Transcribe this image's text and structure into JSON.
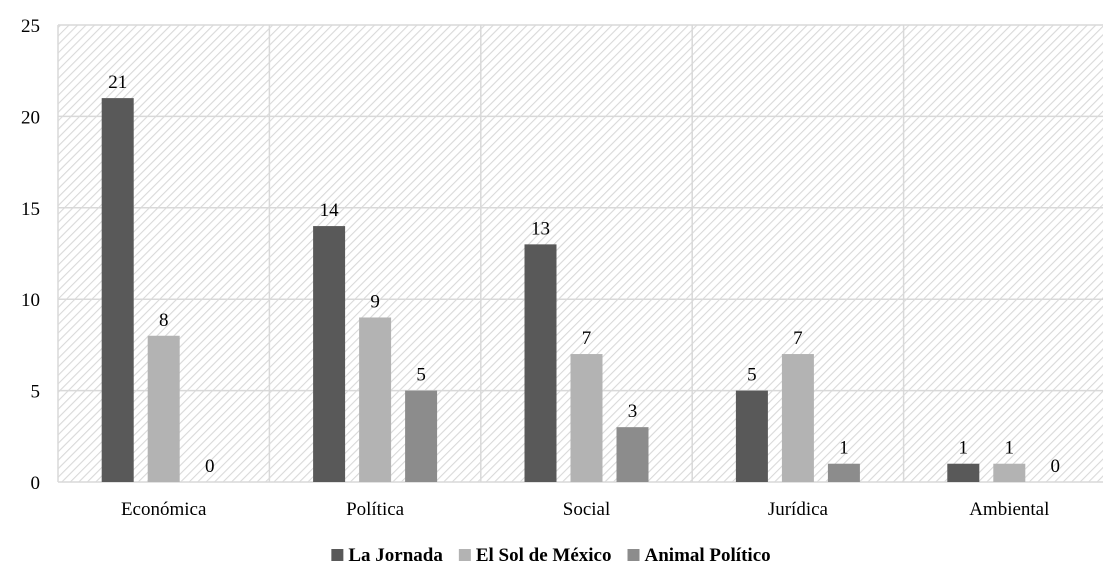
{
  "chart_data": {
    "type": "bar",
    "categories": [
      "Económica",
      "Política",
      "Social",
      "Jurídica",
      "Ambiental"
    ],
    "series": [
      {
        "name": "La Jornada",
        "values": [
          21,
          14,
          13,
          5,
          1
        ],
        "color": "#595959"
      },
      {
        "name": "El Sol de México",
        "values": [
          8,
          9,
          7,
          7,
          1
        ],
        "color": "#b3b3b3"
      },
      {
        "name": "Animal Político",
        "values": [
          0,
          5,
          3,
          1,
          0
        ],
        "color": "#8c8c8c"
      }
    ],
    "title": "",
    "xlabel": "",
    "ylabel": "",
    "ylim": [
      0,
      25
    ],
    "yticks": [
      0,
      5,
      10,
      15,
      20,
      25
    ],
    "grid": true,
    "plot_background": "diagonal-hatch",
    "legend": "bottom-center",
    "data_labels": true
  }
}
